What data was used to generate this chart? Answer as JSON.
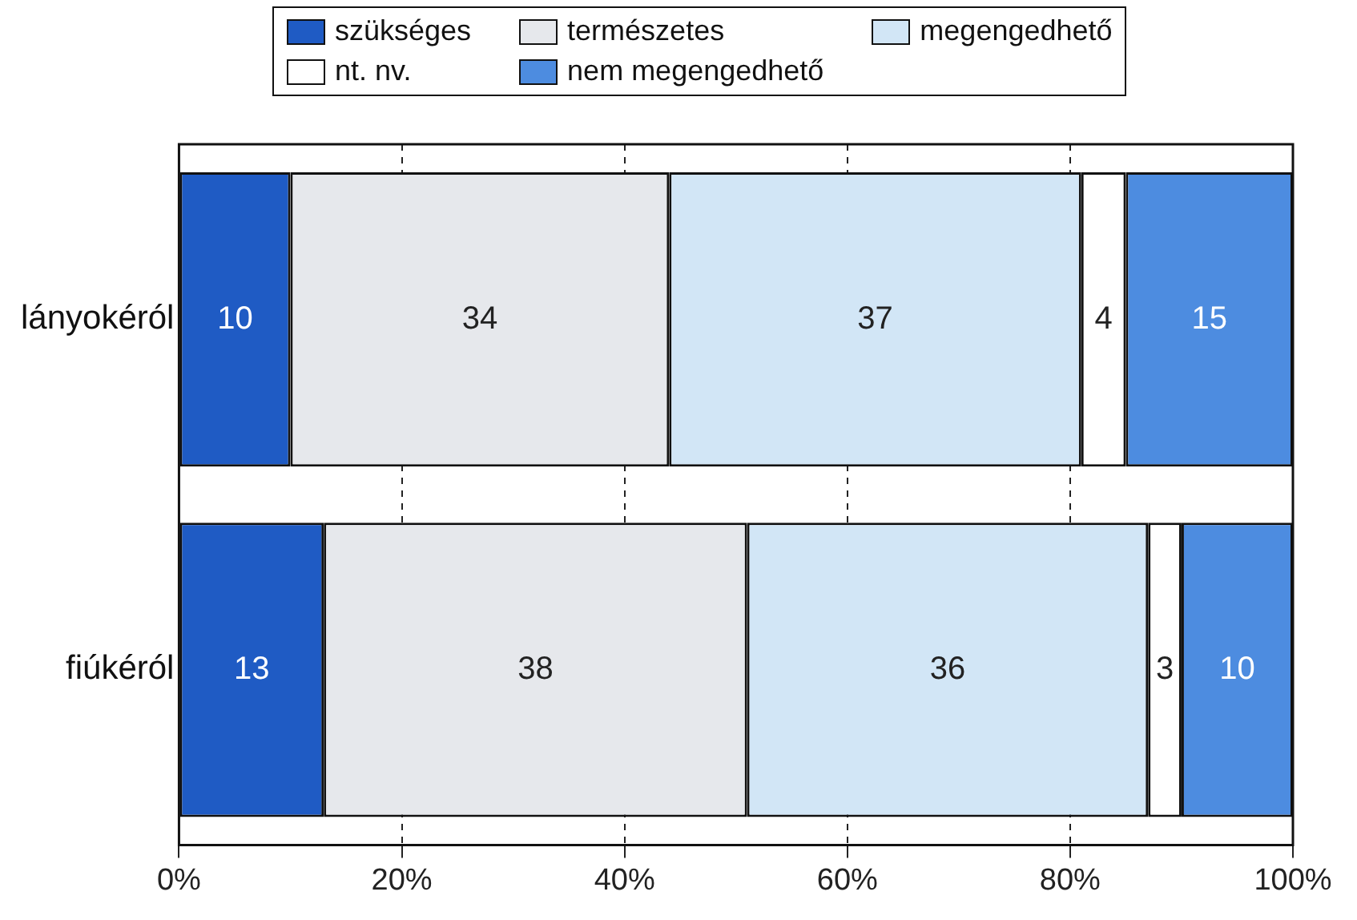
{
  "chart_data": {
    "type": "bar",
    "orientation": "horizontal",
    "stacked": true,
    "categories": [
      "lányokéról",
      "fiúkéról"
    ],
    "series": [
      {
        "name": "szükséges",
        "color": "#1f5bc4",
        "values": [
          10,
          13
        ]
      },
      {
        "name": "természetes",
        "color": "#e6e8ec",
        "values": [
          34,
          38
        ]
      },
      {
        "name": "megengedhető",
        "color": "#d2e6f6",
        "values": [
          37,
          36
        ]
      },
      {
        "name": "nt. nv.",
        "color": "#ffffff",
        "values": [
          4,
          3
        ]
      },
      {
        "name": "nem megengedhető",
        "color": "#4d8ce0",
        "values": [
          15,
          10
        ]
      }
    ],
    "xlim": [
      0,
      100
    ],
    "xticks": [
      {
        "value": 0,
        "label": "0%"
      },
      {
        "value": 20,
        "label": "20%"
      },
      {
        "value": 40,
        "label": "40%"
      },
      {
        "value": 60,
        "label": "60%"
      },
      {
        "value": 80,
        "label": "80%"
      },
      {
        "value": 100,
        "label": "100%"
      }
    ],
    "grid": "x",
    "legend": "top",
    "data_labels": true
  }
}
